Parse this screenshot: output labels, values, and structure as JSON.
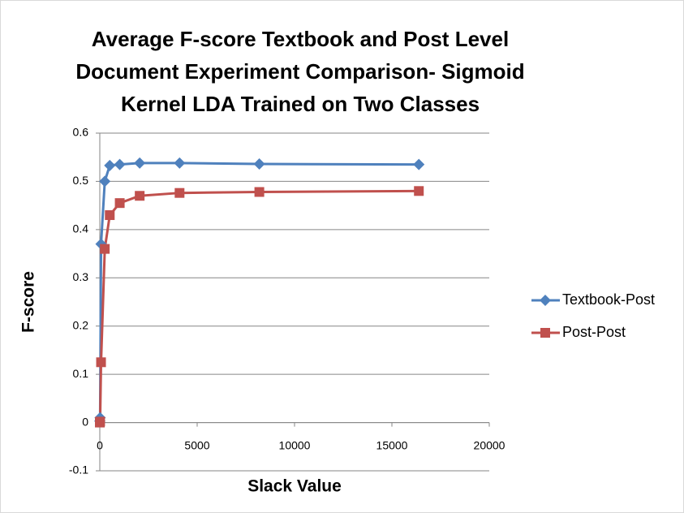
{
  "chart_data": {
    "type": "line",
    "title": "Average F-score Textbook and Post Level\nDocument Experiment Comparison- Sigmoid\nKernel LDA Trained on Two Classes",
    "x_label": "Slack Value",
    "y_label": "F-score",
    "x": [
      1,
      16,
      64,
      256,
      512,
      1024,
      2048,
      4096,
      8192,
      16384
    ],
    "series": [
      {
        "name": "Textbook-Post",
        "color": "#4f81bd",
        "marker": "diamond",
        "values": [
          0.003,
          0.01,
          0.37,
          0.5,
          0.533,
          0.535,
          0.538,
          0.538,
          0.536,
          0.535
        ]
      },
      {
        "name": "Post-Post",
        "color": "#c0504d",
        "marker": "square",
        "values": [
          0,
          0.002,
          0.125,
          0.36,
          0.43,
          0.455,
          0.47,
          0.476,
          0.478,
          0.48
        ]
      }
    ],
    "xlim": [
      0,
      20000
    ],
    "xticks": [
      0,
      5000,
      10000,
      15000,
      20000
    ],
    "ylim": [
      -0.1,
      0.6
    ],
    "yticks": [
      -0.1,
      0,
      0.1,
      0.2,
      0.3,
      0.4,
      0.5,
      0.6
    ],
    "grid": true,
    "legend": "right"
  }
}
